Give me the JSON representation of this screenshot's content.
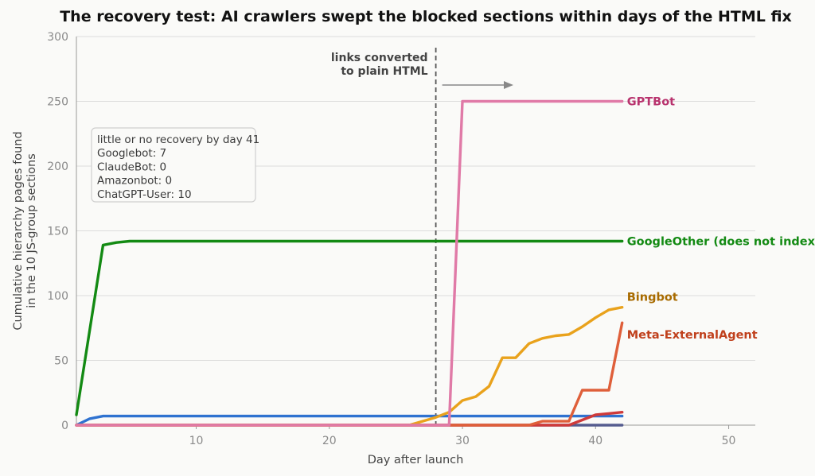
{
  "chart_data": {
    "type": "line",
    "title": "The recovery test: AI crawlers swept the blocked sections within days of the HTML fix",
    "xlabel": "Day after launch",
    "ylabel_lines": [
      "Cumulative hierarchy pages found",
      "in the 10 JS-group sections"
    ],
    "xlim": [
      1,
      52
    ],
    "ylim": [
      0,
      300
    ],
    "x_ticks": [
      10,
      20,
      30,
      40,
      50
    ],
    "y_ticks": [
      0,
      50,
      100,
      150,
      200,
      250,
      300
    ],
    "grid": "horizontal",
    "vline": {
      "x": 28,
      "label_lines": [
        "links converted",
        "to plain HTML"
      ]
    },
    "note_box": {
      "position": "top-left",
      "lines": [
        "little or no recovery by day 41",
        "Googlebot: 7",
        "ClaudeBot: 0",
        "Amazonbot: 0",
        "ChatGPT-User: 10"
      ]
    },
    "series": [
      {
        "name": "GoogleOther (does not index)",
        "color": "#138a13",
        "x": [
          1,
          3,
          4,
          5,
          42
        ],
        "y": [
          8,
          139,
          141,
          142,
          142
        ]
      },
      {
        "color": "#2f72d0",
        "x": [
          1,
          2,
          3,
          42
        ],
        "y": [
          0,
          5,
          7,
          7
        ]
      },
      {
        "color": "#555c8f",
        "x": [
          1,
          42
        ],
        "y": [
          0,
          0
        ]
      },
      {
        "name": "GPTBot",
        "color": "#e07aa7",
        "label_color": "#b8336e",
        "x": [
          1,
          29,
          30,
          42
        ],
        "y": [
          0,
          0,
          250,
          250
        ]
      },
      {
        "name": "Bingbot",
        "color": "#e9a21c",
        "label_color": "#a86b00",
        "x": [
          1,
          26,
          27,
          28,
          29,
          30,
          31,
          32,
          33,
          34,
          35,
          36,
          37,
          38,
          39,
          40,
          41,
          42
        ],
        "y": [
          0,
          0,
          3,
          6,
          10,
          19,
          22,
          30,
          52,
          52,
          63,
          67,
          69,
          70,
          76,
          83,
          89,
          91
        ]
      },
      {
        "name": "Meta-ExternalAgent",
        "color": "#df5f3a",
        "label_color": "#c0401c",
        "x": [
          1,
          35,
          36,
          38,
          39,
          41,
          42
        ],
        "y": [
          0,
          0,
          3,
          3,
          27,
          27,
          79
        ]
      },
      {
        "color": "#cf3a3a",
        "x": [
          1,
          36,
          38,
          39,
          40,
          42
        ],
        "y": [
          0,
          0,
          0,
          4,
          8,
          10
        ]
      }
    ]
  }
}
